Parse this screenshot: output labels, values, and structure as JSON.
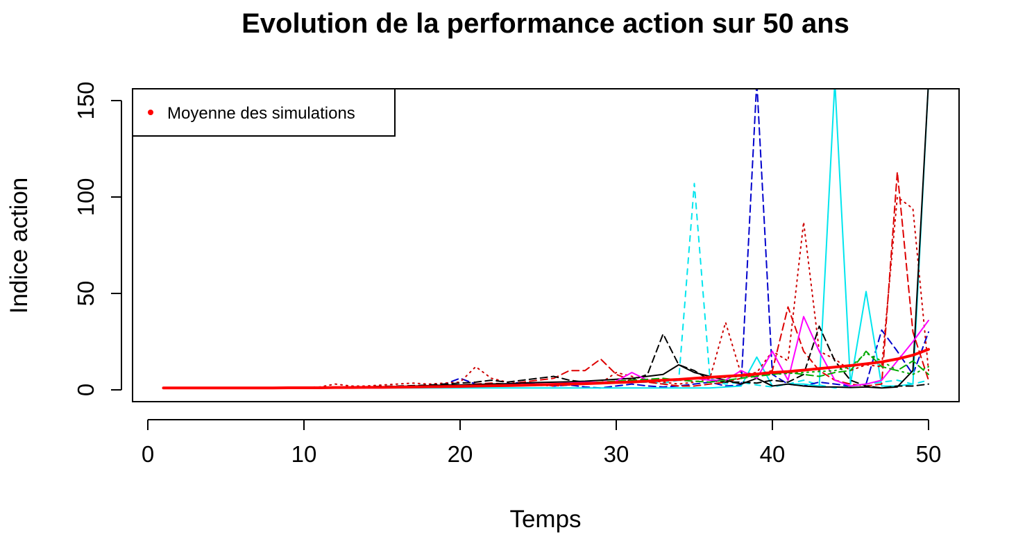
{
  "chart_data": {
    "type": "line",
    "title": "Evolution de la performance action sur 50 ans",
    "xlabel": "Temps",
    "ylabel": "Indice action",
    "xlim": [
      0,
      50
    ],
    "ylim": [
      0,
      150
    ],
    "xticks": [
      "0",
      "10",
      "20",
      "30",
      "40",
      "50"
    ],
    "yticks": [
      "0",
      "50",
      "100",
      "150"
    ],
    "legend": {
      "position": "top-left",
      "entries": [
        {
          "label": "Moyenne des simulations",
          "color": "#ff0000"
        }
      ]
    },
    "x": [
      1,
      2,
      3,
      4,
      5,
      6,
      7,
      8,
      9,
      10,
      11,
      12,
      13,
      14,
      15,
      16,
      17,
      18,
      19,
      20,
      21,
      22,
      23,
      24,
      25,
      26,
      27,
      28,
      29,
      30,
      31,
      32,
      33,
      34,
      35,
      36,
      37,
      38,
      39,
      40,
      41,
      42,
      43,
      44,
      45,
      46,
      47,
      48,
      49,
      50
    ],
    "series": [
      {
        "name": "Moyenne des simulations",
        "color": "#ff0000",
        "dash": "solid",
        "width": 4,
        "values": [
          1,
          1,
          1,
          1,
          1,
          1,
          1,
          1,
          1.1,
          1.1,
          1.1,
          1.2,
          1.2,
          1.3,
          1.3,
          1.4,
          1.5,
          1.6,
          1.7,
          1.8,
          2,
          2.1,
          2.2,
          2.4,
          2.6,
          2.8,
          3,
          3.2,
          3.5,
          3.8,
          4.1,
          4.5,
          5,
          5.4,
          6,
          6.5,
          7,
          7.5,
          8.2,
          9,
          9.5,
          10.2,
          11,
          11.8,
          12.6,
          13.5,
          14.5,
          16,
          18,
          21
        ]
      },
      {
        "color": "#00e5ee",
        "dash": "8,8",
        "values": [
          1,
          1,
          1,
          1,
          1,
          1,
          1,
          1.1,
          1.1,
          1.1,
          1,
          1.2,
          1.2,
          1.3,
          1.2,
          1.4,
          1.5,
          1.4,
          1.6,
          1.8,
          1.9,
          2,
          2.2,
          2.4,
          2.2,
          2.6,
          2.8,
          3,
          3.2,
          3.5,
          3.8,
          4,
          3.5,
          5,
          107,
          6,
          3,
          4,
          2.5,
          1.5,
          3,
          5,
          2.5,
          1,
          2,
          3,
          4,
          5,
          3,
          5
        ]
      },
      {
        "color": "#0000cc",
        "dash": "10,6",
        "values": [
          1,
          1,
          1,
          1,
          1,
          1,
          1,
          1.1,
          1.2,
          1.2,
          1.3,
          1.4,
          1.5,
          1.6,
          1.7,
          1.8,
          2,
          2.2,
          3,
          6,
          3,
          2,
          3,
          4,
          3,
          2,
          2.5,
          1.5,
          1,
          2,
          3,
          2,
          1.5,
          2,
          3,
          4,
          2,
          2.5,
          160,
          8,
          3,
          2,
          4,
          3,
          2,
          3,
          31,
          20,
          8,
          30
        ]
      },
      {
        "color": "#00e5ee",
        "dash": "solid",
        "values": [
          1,
          1,
          1,
          1,
          1,
          1,
          1,
          1,
          1,
          1,
          1,
          1,
          1,
          1,
          1,
          1,
          1,
          1,
          1,
          1,
          1,
          1,
          1,
          1,
          1,
          1,
          1,
          1,
          1,
          1,
          1,
          1,
          1,
          1,
          1,
          1,
          1.5,
          2,
          17,
          2,
          3,
          3,
          2,
          160,
          3,
          51,
          2,
          2,
          3,
          160
        ]
      },
      {
        "color": "#cc0000",
        "dash": "2,6",
        "values": [
          1,
          1,
          1,
          1,
          1,
          1,
          1,
          1.2,
          1.3,
          1.4,
          1.5,
          3,
          2,
          2,
          2.5,
          3,
          3.5,
          3,
          3.5,
          4,
          12,
          6,
          4,
          3,
          2.5,
          2,
          2.5,
          3,
          3.5,
          9,
          7,
          5,
          4,
          3,
          4,
          6,
          35,
          8,
          9,
          20,
          15,
          87,
          20,
          16,
          10,
          13,
          12,
          100,
          94,
          10
        ]
      },
      {
        "color": "#dd0000",
        "dash": "10,6",
        "values": [
          1,
          1,
          1,
          1,
          1,
          1,
          1,
          1,
          1.1,
          1.2,
          1.2,
          1.3,
          1.4,
          1.4,
          1.5,
          1.6,
          1.8,
          2,
          2.2,
          2.5,
          3,
          3.5,
          3,
          4,
          5,
          6,
          10,
          10,
          16,
          8,
          5,
          4,
          3,
          2,
          2,
          3,
          4,
          6,
          8,
          10,
          43,
          20,
          10,
          5,
          3,
          2,
          3,
          113,
          30,
          5
        ]
      },
      {
        "color": "#000000",
        "dash": "10,6",
        "values": [
          1,
          1,
          1,
          1,
          1,
          1,
          1,
          1.1,
          1.2,
          1.3,
          1.3,
          1.4,
          1.5,
          1.6,
          1.8,
          2,
          2.2,
          2.5,
          3,
          3.5,
          4,
          5,
          4,
          5,
          6,
          7,
          5,
          4,
          3.5,
          4,
          5,
          8,
          29,
          13,
          10,
          5,
          4,
          4,
          3.5,
          5,
          4,
          8,
          33,
          15,
          5,
          2,
          1,
          2,
          2,
          3
        ]
      },
      {
        "color": "#000000",
        "dash": "solid",
        "values": [
          1,
          1,
          1,
          1,
          1,
          1,
          1,
          1.1,
          1.2,
          1.2,
          1.3,
          1.3,
          1.4,
          1.5,
          1.6,
          1.8,
          2,
          2.2,
          2.5,
          2.5,
          2.8,
          3,
          3.2,
          3.5,
          3.8,
          4,
          4.2,
          4.5,
          5,
          5.5,
          6,
          7,
          8,
          13,
          9,
          7,
          5,
          3,
          6,
          2,
          3,
          2,
          1.5,
          1.5,
          1.2,
          1.5,
          1,
          1.5,
          10,
          160
        ]
      },
      {
        "color": "#ff00ff",
        "dash": "solid",
        "values": [
          1,
          1,
          1,
          1,
          1,
          1,
          1,
          1,
          1,
          1,
          1,
          1,
          1,
          1,
          1,
          1.2,
          1.4,
          1.6,
          1.8,
          2,
          2.2,
          2.4,
          2.6,
          2.8,
          3,
          3.2,
          3.5,
          3.8,
          4,
          4.5,
          9,
          5,
          5,
          5,
          6,
          5,
          5,
          10,
          6,
          20,
          5,
          38,
          20,
          5,
          2,
          3,
          5,
          15,
          25,
          36
        ]
      },
      {
        "color": "#00aa00",
        "dash": "10,6",
        "values": [
          1,
          1,
          1,
          1,
          1,
          1,
          1,
          1,
          1,
          1,
          1,
          1,
          1,
          1.1,
          1.2,
          1.3,
          1.4,
          1.5,
          1.6,
          1.8,
          2,
          2.2,
          2.4,
          2.6,
          2.8,
          3,
          3.2,
          3.5,
          4,
          4.5,
          5,
          5.5,
          6,
          5,
          4.5,
          4,
          5,
          6,
          7,
          8,
          9,
          8,
          7,
          9,
          10,
          20,
          12,
          10,
          15,
          8
        ]
      },
      {
        "color": "#00aa00",
        "dash": "2,6",
        "values": [
          1,
          1,
          1,
          1,
          1,
          1,
          1,
          1,
          1,
          1,
          1,
          1,
          1,
          1,
          1.1,
          1.2,
          1.3,
          1.4,
          1.5,
          1.6,
          1.8,
          2,
          2.2,
          2.5,
          2.8,
          3,
          3.2,
          3.4,
          3.6,
          4,
          4.2,
          4.5,
          5,
          5.5,
          6,
          6.2,
          6.5,
          7,
          7.5,
          8,
          8.5,
          9,
          9.5,
          10,
          12,
          19,
          15,
          10,
          8,
          12
        ]
      }
    ]
  }
}
